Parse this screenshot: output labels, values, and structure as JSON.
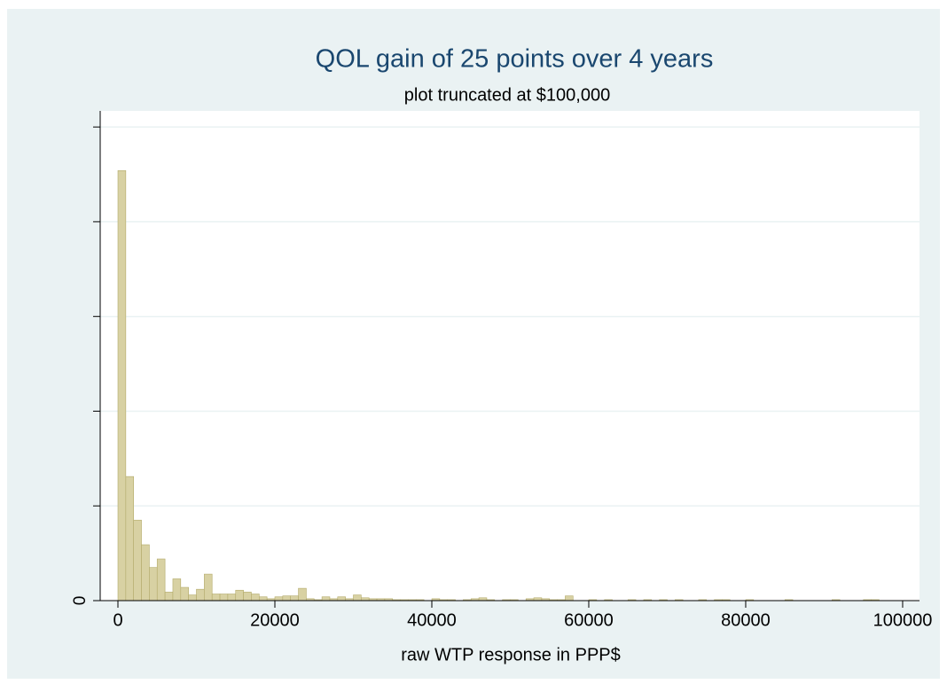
{
  "chart_data": {
    "type": "histogram",
    "title": "QOL gain of 25 points over 4 years",
    "subtitle": "plot truncated at $100,000",
    "x_label": "raw WTP response in PPP$",
    "color": "#d8d1a3",
    "edge_color": "#b3aa6a",
    "grid": true,
    "bins": [
      0,
      1000,
      2000,
      3000,
      4000,
      5000,
      6000,
      7000,
      8000,
      9000,
      10000,
      11000,
      12000,
      13000,
      14000,
      15000,
      16000,
      17000,
      18000,
      19000,
      20000,
      21000,
      22000,
      23000,
      24000,
      25000,
      26000,
      27000,
      28000,
      29000,
      30000,
      31000,
      32000,
      33000,
      34000,
      35000,
      36000,
      37000,
      38000,
      39000,
      40000,
      41000,
      42000,
      43000,
      44000,
      45000,
      46000,
      47000,
      48000,
      49000,
      50000,
      51000,
      52000,
      53000,
      54000,
      55000,
      56000,
      57000,
      58000,
      59000,
      60000,
      61000,
      62000,
      63000,
      64000,
      65000,
      66000,
      67000,
      68000,
      69000,
      70000,
      71000,
      72000,
      73000,
      74000,
      75000,
      76000,
      77000,
      78000,
      79000,
      80000,
      81000,
      82000,
      83000,
      84000,
      85000,
      86000,
      87000,
      88000,
      89000,
      90000,
      91000,
      92000,
      93000,
      94000,
      95000,
      96000,
      97000,
      98000
    ],
    "values": [
      4.54,
      1.31,
      0.85,
      0.59,
      0.35,
      0.44,
      0.09,
      0.23,
      0.14,
      0.06,
      0.12,
      0.28,
      0.07,
      0.07,
      0.07,
      0.11,
      0.09,
      0.07,
      0.04,
      0.02,
      0.04,
      0.05,
      0.05,
      0.13,
      0.02,
      0.01,
      0.04,
      0.02,
      0.04,
      0.02,
      0.06,
      0.03,
      0.02,
      0.02,
      0.02,
      0.01,
      0.01,
      0.01,
      0.01,
      0,
      0.02,
      0.01,
      0.01,
      0,
      0.01,
      0.02,
      0.03,
      0.01,
      0,
      0.01,
      0.01,
      0,
      0.02,
      0.03,
      0.02,
      0.01,
      0.01,
      0.05,
      0,
      0,
      0.01,
      0,
      0.01,
      0,
      0,
      0.01,
      0,
      0.01,
      0,
      0.01,
      0,
      0.01,
      0,
      0,
      0.01,
      0,
      0.01,
      0.01,
      0,
      0,
      0.01,
      0,
      0,
      0,
      0,
      0.01,
      0,
      0,
      0,
      0,
      0,
      0.01,
      0,
      0,
      0,
      0.01,
      0.01,
      0
    ],
    "xlim": [
      -2260,
      102150
    ],
    "xticks": [
      0,
      20000,
      40000,
      60000,
      80000,
      100000
    ],
    "ylim": [
      0,
      5.17
    ],
    "yticks": [
      0,
      {
        "value": 1,
        "label": null
      },
      {
        "value": 2,
        "label": null
      },
      {
        "value": 3,
        "label": null
      },
      {
        "value": 4,
        "label": null
      },
      {
        "value": 5,
        "label": null
      }
    ]
  }
}
